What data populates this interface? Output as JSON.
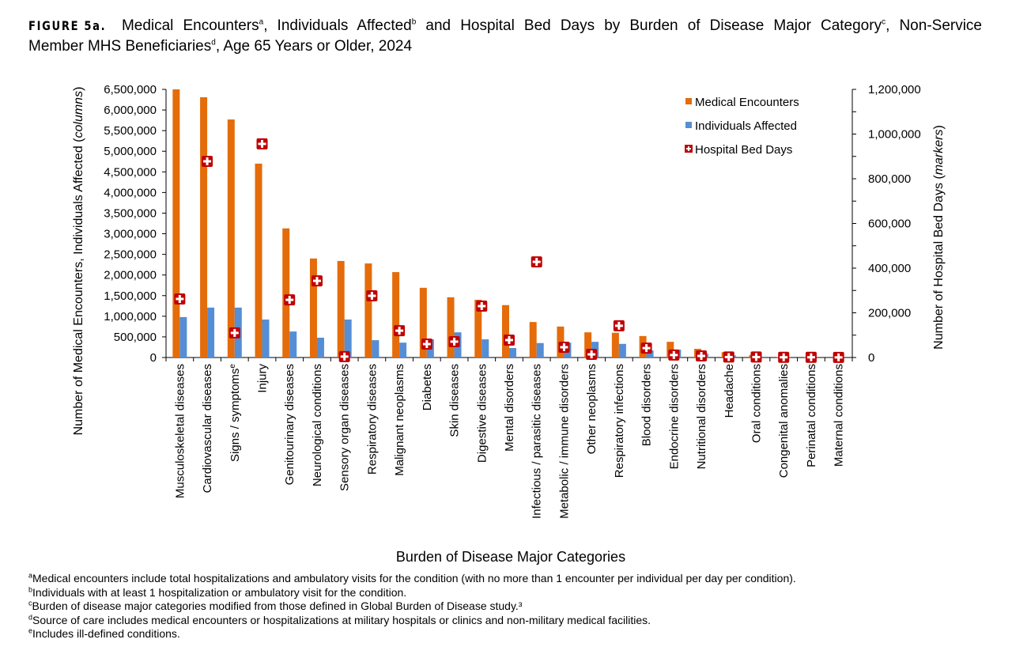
{
  "title": {
    "figure_label": "FIGURE 5a.",
    "part1": "Medical Encounters",
    "sup_a": "a",
    "part2": ", Individuals Affected",
    "sup_b": "b",
    "part3": " and Hospital Bed Days by Burden of Disease Major Category",
    "sup_c": "c",
    "part4": ", Non-Service",
    "part5": "Member MHS Beneficiaries",
    "sup_d": "d",
    "part6": ", Age 65 Years or Older, 2024"
  },
  "footnotes": [
    {
      "mark": "a",
      "text": "Medical encounters include total hospitalizations and ambulatory visits for the condition (with no more than 1 encounter per individual per day per condition)."
    },
    {
      "mark": "b",
      "text": "Individuals with at least 1 hospitalization or ambulatory visit for the condition."
    },
    {
      "mark": "c",
      "text": "Burden of disease major categories modified from those defined in Global Burden of Disease study.³"
    },
    {
      "mark": "d",
      "text": "Source of care includes medical encounters or hospitalizations at military hospitals or clinics and non-military medical facilities."
    },
    {
      "mark": "e",
      "text": "Includes ill-defined conditions."
    }
  ],
  "chart_data": {
    "type": "bar",
    "xlabel": "Burden of Disease Major Categories",
    "ylabel": "Number of Medical Encounters, Individuals Affected (",
    "ylabel_italic": "columns",
    "ylabel_end": ")",
    "y2label": "Number of Hospital Bed Days (",
    "y2label_italic": "markers",
    "y2label_end": ")",
    "ylim": [
      0,
      6500000
    ],
    "y2lim": [
      0,
      1200000
    ],
    "yticks": [
      "0",
      "500,000",
      "1,000,000",
      "1,500,000",
      "2,000,000",
      "2,500,000",
      "3,000,000",
      "3,500,000",
      "4,000,000",
      "4,500,000",
      "5,000,000",
      "5,500,000",
      "6,000,000",
      "6,500,000"
    ],
    "y2ticks": [
      "0",
      "200,000",
      "400,000",
      "600,000",
      "800,000",
      "1,000,000",
      "1,200,000"
    ],
    "legend_position": "top-right",
    "categories": [
      "Musculoskeletal diseases",
      "Cardiovascular diseases",
      "Signs / symptoms",
      "Injury",
      "Genitourinary diseases",
      "Neurological conditions",
      "Sensory organ diseases",
      "Respiratory diseases",
      "Malignant neoplasms",
      "Diabetes",
      "Skin diseases",
      "Digestive diseases",
      "Mental disorders",
      "Infectious / parasitic diseases",
      "Metabolic / immune disorders",
      "Other neoplasms",
      "Respiratory infections",
      "Blood disorders",
      "Endocrine disorders",
      "Nutritional disorders",
      "Headache",
      "Oral conditions",
      "Congenital anomalies",
      "Perinatal conditions",
      "Maternal conditions"
    ],
    "category_sup": {
      "2": "e"
    },
    "series": [
      {
        "name": "Medical Encounters",
        "axis": "left",
        "kind": "bar",
        "color": "#E46C0A",
        "values": [
          6500000,
          6310000,
          5770000,
          4700000,
          3130000,
          2400000,
          2340000,
          2280000,
          2070000,
          1690000,
          1460000,
          1400000,
          1270000,
          860000,
          750000,
          610000,
          600000,
          520000,
          380000,
          210000,
          130000,
          60000,
          10000,
          5000,
          2000
        ]
      },
      {
        "name": "Individuals Affected",
        "axis": "left",
        "kind": "bar",
        "color": "#558ED5",
        "values": [
          980000,
          1210000,
          1210000,
          920000,
          630000,
          480000,
          920000,
          420000,
          360000,
          440000,
          610000,
          440000,
          230000,
          350000,
          360000,
          380000,
          330000,
          170000,
          190000,
          90000,
          50000,
          20000,
          5000,
          2000,
          1000
        ]
      },
      {
        "name": "Hospital Bed Days",
        "axis": "right",
        "kind": "marker",
        "color": "#C00000",
        "values": [
          262000,
          878000,
          110000,
          956000,
          258000,
          343000,
          4000,
          276000,
          120000,
          60000,
          71000,
          230000,
          78000,
          428000,
          46000,
          14000,
          142000,
          42000,
          11000,
          7000,
          2000,
          2000,
          1000,
          1000,
          500
        ]
      }
    ]
  }
}
